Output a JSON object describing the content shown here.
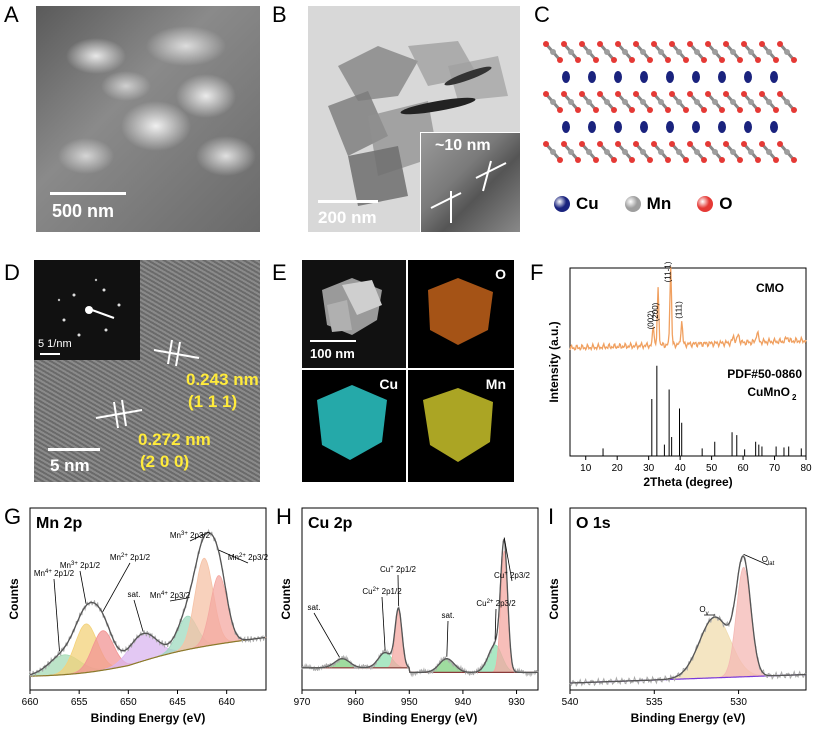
{
  "panels": {
    "A": {
      "label": "A",
      "scale": "500 nm"
    },
    "B": {
      "label": "B",
      "scale": "200 nm",
      "inset_scale": "~10 nm"
    },
    "C": {
      "label": "C",
      "legend": [
        {
          "name": "Cu",
          "color": "#1a237e"
        },
        {
          "name": "Mn",
          "color": "#9e9e9e"
        },
        {
          "name": "O",
          "color": "#e53935"
        }
      ]
    },
    "D": {
      "label": "D",
      "saed_scale": "5 1/nm",
      "scale": "5 nm",
      "fringes": [
        {
          "d": "0.243 nm",
          "hkl": "(1 1 1)"
        },
        {
          "d": "0.272 nm",
          "hkl": "(2 0 0)"
        }
      ]
    },
    "E": {
      "label": "E",
      "scale": "100 nm",
      "maps": [
        "O",
        "Cu",
        "Mn"
      ]
    },
    "F": {
      "label": "F"
    },
    "G": {
      "label": "G"
    },
    "H": {
      "label": "H"
    },
    "I": {
      "label": "I"
    }
  },
  "chart_data": [
    {
      "id": "F",
      "type": "line",
      "xlabel": "2Theta (degree)",
      "ylabel": "Intensity (a.u.)",
      "xlim": [
        5,
        80
      ],
      "xticks": [
        10,
        20,
        30,
        40,
        50,
        60,
        70,
        80
      ],
      "series_label": "CMO",
      "series_color": "#f0a060",
      "peaks": [
        {
          "x": 31.5,
          "label": "(002)"
        },
        {
          "x": 33.0,
          "label": "(200)"
        },
        {
          "x": 37.0,
          "label": "(11-1)"
        },
        {
          "x": 40.5,
          "label": "(111)"
        }
      ],
      "reference": {
        "name": "PDF#50-0860",
        "formula": "CuMnO",
        "formula_sub": "2",
        "sticks": [
          {
            "x": 15.5,
            "h": 0.08
          },
          {
            "x": 31.0,
            "h": 0.6
          },
          {
            "x": 32.6,
            "h": 0.95
          },
          {
            "x": 35.0,
            "h": 0.12
          },
          {
            "x": 36.5,
            "h": 0.7
          },
          {
            "x": 37.3,
            "h": 0.2
          },
          {
            "x": 39.8,
            "h": 0.5
          },
          {
            "x": 40.5,
            "h": 0.35
          },
          {
            "x": 47.0,
            "h": 0.08
          },
          {
            "x": 51.0,
            "h": 0.15
          },
          {
            "x": 56.5,
            "h": 0.25
          },
          {
            "x": 58.0,
            "h": 0.22
          },
          {
            "x": 60.5,
            "h": 0.07
          },
          {
            "x": 64.0,
            "h": 0.15
          },
          {
            "x": 65.0,
            "h": 0.12
          },
          {
            "x": 66.0,
            "h": 0.1
          },
          {
            "x": 70.5,
            "h": 0.1
          },
          {
            "x": 73.0,
            "h": 0.09
          },
          {
            "x": 74.5,
            "h": 0.1
          },
          {
            "x": 78.5,
            "h": 0.08
          }
        ]
      }
    },
    {
      "id": "G",
      "type": "line",
      "title": "Mn 2p",
      "xlabel": "Binding Energy (eV)",
      "ylabel": "Counts",
      "xlim": [
        660,
        636
      ],
      "xticks": [
        660,
        655,
        650,
        645,
        640
      ],
      "components": [
        {
          "center": 656.5,
          "width": 2.2,
          "amp": 0.13,
          "color": "#a5dbb5"
        },
        {
          "center": 654.3,
          "width": 1.6,
          "amp": 0.32,
          "color": "#f3d27a"
        },
        {
          "center": 652.6,
          "width": 1.5,
          "amp": 0.26,
          "color": "#f29494"
        },
        {
          "center": 648.5,
          "width": 2.0,
          "amp": 0.18,
          "color": "#d9b6ef"
        },
        {
          "center": 644.0,
          "width": 1.4,
          "amp": 0.22,
          "color": "#9fd9bf"
        },
        {
          "center": 642.3,
          "width": 1.3,
          "amp": 0.58,
          "color": "#f5c2a6"
        },
        {
          "center": 640.8,
          "width": 1.2,
          "amp": 0.45,
          "color": "#f4a8a2"
        }
      ],
      "annotations": [
        {
          "text": "Mn",
          "sup": "4+",
          "rest": " 2p1/2",
          "x": 657.0
        },
        {
          "text": "Mn",
          "sup": "3+",
          "rest": " 2p1/2",
          "x": 654.3
        },
        {
          "text": "Mn",
          "sup": "2+",
          "rest": " 2p1/2",
          "x": 652.6
        },
        {
          "text": "sat.",
          "sup": "",
          "rest": "",
          "x": 648.5
        },
        {
          "text": "Mn",
          "sup": "4+",
          "rest": " 2p3/2",
          "x": 644.0
        },
        {
          "text": "Mn",
          "sup": "3+",
          "rest": " 2p3/2",
          "x": 642.3
        },
        {
          "text": "Mn",
          "sup": "2+",
          "rest": " 2p3/2",
          "x": 640.8
        }
      ]
    },
    {
      "id": "H",
      "type": "line",
      "title": "Cu 2p",
      "xlabel": "Binding Energy (eV)",
      "ylabel": "Counts",
      "xlim": [
        970,
        926
      ],
      "xticks": [
        970,
        960,
        950,
        940,
        930
      ],
      "components": [
        {
          "center": 962.5,
          "width": 2.0,
          "amp": 0.06,
          "color": "#7fd07f"
        },
        {
          "center": 954.5,
          "width": 1.8,
          "amp": 0.1,
          "color": "#8fe0b0"
        },
        {
          "center": 952.0,
          "width": 0.9,
          "amp": 0.38,
          "color": "#f4a8a2"
        },
        {
          "center": 943.0,
          "width": 2.0,
          "amp": 0.09,
          "color": "#7fd07f"
        },
        {
          "center": 934.0,
          "width": 1.8,
          "amp": 0.18,
          "color": "#8fe0b0"
        },
        {
          "center": 932.3,
          "width": 0.9,
          "amp": 0.8,
          "color": "#f4a8a2"
        }
      ],
      "annotations": [
        {
          "text": "sat.",
          "sup": "",
          "rest": "",
          "x": 963.0
        },
        {
          "text": "Cu",
          "sup": "2+",
          "rest": " 2p1/2",
          "x": 954.5
        },
        {
          "text": "Cu",
          "sup": "+",
          "rest": " 2p1/2",
          "x": 952.0
        },
        {
          "text": "sat.",
          "sup": "",
          "rest": "",
          "x": 943.0
        },
        {
          "text": "Cu",
          "sup": "2+",
          "rest": " 2p3/2",
          "x": 934.0
        },
        {
          "text": "Cu",
          "sup": "+",
          "rest": " 2p3/2",
          "x": 932.3
        }
      ]
    },
    {
      "id": "I",
      "type": "line",
      "title": "O 1s",
      "xlabel": "Binding Energy (eV)",
      "ylabel": "Counts",
      "xlim": [
        540,
        526
      ],
      "xticks": [
        540,
        535,
        530
      ],
      "components": [
        {
          "center": 531.4,
          "width": 1.3,
          "amp": 0.4,
          "color": "#f0dcae"
        },
        {
          "center": 529.7,
          "width": 0.6,
          "amp": 0.72,
          "color": "#f4b8b4"
        }
      ],
      "annotations": [
        {
          "text": "O",
          "sub": "v",
          "x": 531.4
        },
        {
          "text": "O",
          "sub": "lat",
          "x": 529.7
        }
      ]
    }
  ]
}
